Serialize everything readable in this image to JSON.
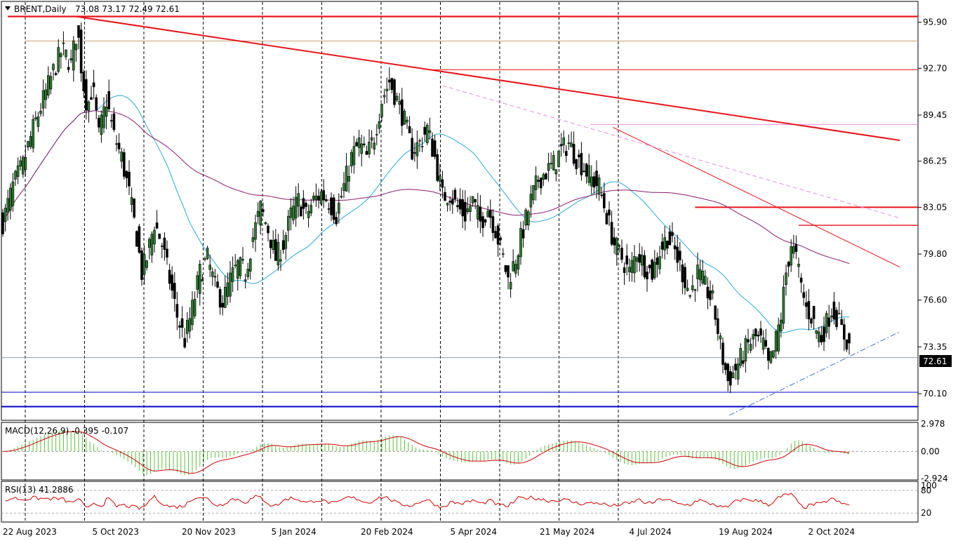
{
  "header": {
    "symbol": "BRENT,Daily",
    "ohlc": "73.08 73.17 72.49 72.61"
  },
  "price_axis": {
    "ticks": [
      "95.90",
      "92.70",
      "89.45",
      "86.25",
      "83.05",
      "79.80",
      "76.60",
      "73.35",
      "70.10"
    ],
    "current_price_label": "72.61"
  },
  "macd": {
    "label": "MACD(12,26,9) -0.395 -0.107",
    "ticks": [
      "2.978",
      "0.00",
      "-2.924"
    ]
  },
  "rsi": {
    "label": "RSI(13) 41.2886",
    "ticks": [
      "100",
      "80",
      "20"
    ]
  },
  "time_axis": {
    "labels": [
      "22 Aug 2023",
      "5 Oct 2023",
      "20 Nov 2023",
      "5 Jan 2024",
      "20 Feb 2024",
      "5 Apr 2024",
      "21 May 2024",
      "4 Jul 2024",
      "19 Aug 2024",
      "2 Oct 2024"
    ]
  },
  "colors": {
    "bull": "#2e7d32",
    "bear": "#000000",
    "ma_fast": "#29a8d8",
    "ma_slow": "#8b1a6b",
    "trend_red": "#e8141a",
    "support_blue": "#0000cc",
    "macd_hist": "#5cbf3a",
    "macd_signal": "#cc0000"
  },
  "chart_data": {
    "type": "candlestick",
    "title": "BRENT,Daily",
    "ylim": [
      68.3,
      97.3
    ],
    "x_start": "22 Aug 2023",
    "x_end": "2 Oct 2024",
    "close_path": [
      [
        0,
        82.0
      ],
      [
        8,
        84.5
      ],
      [
        16,
        86.0
      ],
      [
        24,
        88.5
      ],
      [
        32,
        90.5
      ],
      [
        40,
        92.5
      ],
      [
        47,
        94.0
      ],
      [
        54,
        93.0
      ],
      [
        59,
        95.5
      ],
      [
        63,
        92.0
      ],
      [
        67,
        90.0
      ],
      [
        71,
        91.5
      ],
      [
        76,
        88.0
      ],
      [
        82,
        90.5
      ],
      [
        88,
        88.0
      ],
      [
        94,
        86.5
      ],
      [
        100,
        84.0
      ],
      [
        106,
        81.0
      ],
      [
        110,
        78.5
      ],
      [
        114,
        79.5
      ],
      [
        120,
        82.0
      ],
      [
        126,
        80.5
      ],
      [
        132,
        78.0
      ],
      [
        138,
        75.5
      ],
      [
        144,
        73.8
      ],
      [
        150,
        76.0
      ],
      [
        156,
        78.5
      ],
      [
        162,
        79.5
      ],
      [
        168,
        77.5
      ],
      [
        174,
        76.5
      ],
      [
        180,
        78.0
      ],
      [
        186,
        79.0
      ],
      [
        192,
        78.5
      ],
      [
        198,
        81.0
      ],
      [
        204,
        83.0
      ],
      [
        210,
        81.5
      ],
      [
        216,
        79.5
      ],
      [
        222,
        80.5
      ],
      [
        228,
        82.5
      ],
      [
        234,
        83.5
      ],
      [
        240,
        82.5
      ],
      [
        246,
        83.5
      ],
      [
        252,
        84.0
      ],
      [
        258,
        83.5
      ],
      [
        264,
        82.5
      ],
      [
        270,
        84.5
      ],
      [
        276,
        86.5
      ],
      [
        282,
        87.5
      ],
      [
        288,
        86.5
      ],
      [
        294,
        88.0
      ],
      [
        300,
        90.5
      ],
      [
        306,
        91.8
      ],
      [
        312,
        90.5
      ],
      [
        318,
        89.0
      ],
      [
        324,
        87.0
      ],
      [
        330,
        87.5
      ],
      [
        336,
        88.5
      ],
      [
        342,
        86.5
      ],
      [
        348,
        83.8
      ],
      [
        354,
        84.0
      ],
      [
        360,
        83.0
      ],
      [
        366,
        82.5
      ],
      [
        372,
        83.5
      ],
      [
        378,
        82.0
      ],
      [
        384,
        83.0
      ],
      [
        390,
        81.5
      ],
      [
        396,
        79.5
      ],
      [
        400,
        78.0
      ],
      [
        406,
        79.5
      ],
      [
        412,
        81.5
      ],
      [
        418,
        83.5
      ],
      [
        424,
        85.0
      ],
      [
        430,
        85.5
      ],
      [
        436,
        86.0
      ],
      [
        442,
        87.0
      ],
      [
        448,
        87.5
      ],
      [
        454,
        86.5
      ],
      [
        460,
        85.8
      ],
      [
        466,
        85.0
      ],
      [
        472,
        84.5
      ],
      [
        478,
        82.5
      ],
      [
        484,
        80.5
      ],
      [
        490,
        79.5
      ],
      [
        496,
        78.5
      ],
      [
        502,
        80.0
      ],
      [
        508,
        79.0
      ],
      [
        514,
        78.5
      ],
      [
        520,
        80.0
      ],
      [
        526,
        81.0
      ],
      [
        532,
        80.0
      ],
      [
        538,
        78.5
      ],
      [
        544,
        77.0
      ],
      [
        550,
        78.5
      ],
      [
        556,
        77.5
      ],
      [
        562,
        76.5
      ],
      [
        566,
        74.5
      ],
      [
        570,
        72.5
      ],
      [
        574,
        71.0
      ],
      [
        578,
        71.5
      ],
      [
        584,
        72.5
      ],
      [
        590,
        73.5
      ],
      [
        596,
        74.0
      ],
      [
        602,
        73.5
      ],
      [
        606,
        72.0
      ],
      [
        610,
        73.0
      ],
      [
        616,
        75.5
      ],
      [
        620,
        78.5
      ],
      [
        624,
        80.5
      ],
      [
        628,
        79.5
      ],
      [
        632,
        77.5
      ],
      [
        636,
        76.0
      ],
      [
        640,
        75.5
      ],
      [
        644,
        74.5
      ],
      [
        648,
        74.0
      ],
      [
        652,
        75.0
      ],
      [
        656,
        76.0
      ],
      [
        660,
        75.5
      ],
      [
        664,
        74.5
      ],
      [
        670,
        73.4
      ]
    ],
    "horizontal_levels": [
      {
        "level": 96.3,
        "kind": "resistance"
      },
      {
        "level": 94.6,
        "kind": "resistance"
      },
      {
        "level": 92.6,
        "kind": "resistance"
      },
      {
        "level": 88.8,
        "kind": "resistance"
      },
      {
        "level": 83.05,
        "kind": "resistance"
      },
      {
        "level": 81.8,
        "kind": "resistance"
      },
      {
        "level": 72.61,
        "kind": "current price"
      },
      {
        "level": 70.2,
        "kind": "support"
      },
      {
        "level": 69.2,
        "kind": "support"
      }
    ],
    "trend_lines": [
      {
        "from": {
          "bar": 58,
          "price": 96.3
        },
        "to": {
          "bar": 710,
          "price": 87.7
        }
      },
      {
        "from": {
          "bar": 483,
          "price": 88.6
        },
        "to": {
          "bar": 710,
          "price": 78.9
        }
      },
      {
        "from": {
          "bar": 348,
          "price": 91.5
        },
        "to": {
          "bar": 710,
          "price": 82.3
        }
      },
      {
        "from": {
          "bar": 575,
          "price": 68.6
        },
        "to": {
          "bar": 710,
          "price": 74.4
        }
      }
    ],
    "indicators": [
      {
        "kind": "moving average (fast)",
        "color": "#29a8d8"
      },
      {
        "kind": "moving average (slow)",
        "color": "#8b1a6b"
      },
      {
        "kind": "MACD(12,26,9)",
        "values": [
          -0.395,
          -0.107
        ],
        "ylim": [
          -2.924,
          2.978
        ]
      },
      {
        "kind": "RSI(13)",
        "value": 41.2886,
        "ylim": [
          0,
          100
        ],
        "levels": [
          20,
          80
        ]
      }
    ]
  }
}
